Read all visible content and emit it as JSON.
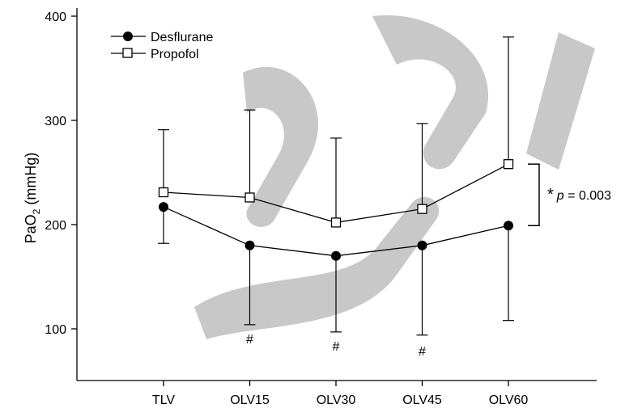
{
  "chart_data": {
    "type": "line",
    "categories": [
      "TLV",
      "OLV15",
      "OLV30",
      "OLV45",
      "OLV60"
    ],
    "ylabel_main": "PaO",
    "ylabel_sub": "2",
    "ylabel_unit": " (mmHg)",
    "ylim": [
      60,
      400
    ],
    "yticks": [
      100,
      200,
      300,
      400
    ],
    "grid": false,
    "legend_position": "top-left",
    "series": [
      {
        "name": "Desflurane",
        "marker": "filled-circle",
        "color": "#000000",
        "values": [
          217,
          180,
          170,
          180,
          199
        ],
        "error_lower": [
          182,
          104,
          97,
          94,
          108
        ],
        "error_upper": [
          null,
          null,
          null,
          null,
          null
        ]
      },
      {
        "name": "Propofol",
        "marker": "open-square",
        "color": "#000000",
        "values": [
          231,
          226,
          202,
          215,
          258
        ],
        "error_lower": [
          null,
          null,
          null,
          null,
          null
        ],
        "error_upper": [
          291,
          310,
          283,
          297,
          380
        ]
      }
    ],
    "hash_marks": [
      {
        "category": "OLV15",
        "label": "#"
      },
      {
        "category": "OLV30",
        "label": "#"
      },
      {
        "category": "OLV45",
        "label": "#"
      }
    ],
    "significance": {
      "star": "*",
      "p_symbol": "p",
      "p_text": " = 0.003",
      "category": "OLV60",
      "from": 199,
      "to": 258
    }
  }
}
